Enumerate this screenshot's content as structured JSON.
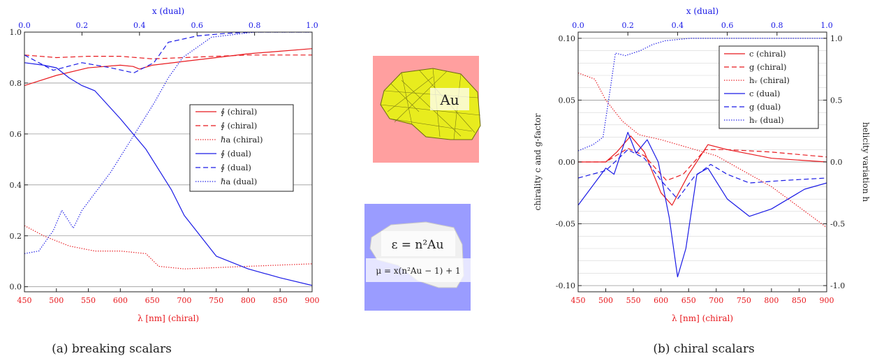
{
  "captions": {
    "left": "(a) breaking scalars",
    "right": "(b) chiral scalars"
  },
  "insets": {
    "au": {
      "label": "Au",
      "bg": "#ff9f9f",
      "body": "#e8ec1e"
    },
    "eps": {
      "label": "ε = n²Au",
      "bg": "#9a9cff",
      "body": "#f0f0f0"
    },
    "mu": {
      "label": "μ = x(n²Au − 1) + 1"
    }
  },
  "colors": {
    "chiral": "#e8191e",
    "dual": "#1a1ae6"
  },
  "chart_data": [
    {
      "type": "line",
      "xlabel": "λ [nm] (chiral)",
      "x2label": "x (dual)",
      "xlim": [
        450,
        900
      ],
      "ylim": [
        -0.02,
        1.0
      ],
      "x2lim": [
        0.0,
        1.0
      ],
      "xticks": [
        450,
        500,
        550,
        600,
        650,
        700,
        750,
        800,
        850,
        900
      ],
      "xtick_labels": [
        "450",
        "500",
        "550",
        "600",
        "650",
        "700",
        "750",
        "800",
        "850",
        "900"
      ],
      "x2ticks": [
        0.0,
        0.2,
        0.4,
        0.6,
        0.8,
        1.0
      ],
      "x2tick_labels": [
        "0.0",
        "0.2",
        "0.4",
        "0.6",
        "0.8",
        "1.0"
      ],
      "yticks": [
        0.0,
        0.2,
        0.4,
        0.6,
        0.8,
        1.0
      ],
      "ytick_labels": [
        "0.0",
        "0.2",
        "0.4",
        "0.6",
        "0.8",
        "1.0"
      ],
      "grid": true,
      "legend_position": "center-right",
      "series": [
        {
          "name": "∮ (chiral)",
          "color": "#e8191e",
          "style": "solid",
          "axis": "bottom",
          "x": [
            450,
            500,
            550,
            600,
            620,
            630,
            650,
            700,
            750,
            800,
            850,
            900
          ],
          "y": [
            0.79,
            0.83,
            0.86,
            0.87,
            0.865,
            0.855,
            0.87,
            0.885,
            0.9,
            0.915,
            0.925,
            0.935
          ]
        },
        {
          "name": "∮ (chiral)",
          "color": "#e8191e",
          "style": "dashed",
          "axis": "bottom",
          "x": [
            450,
            500,
            550,
            600,
            650,
            700,
            750,
            800,
            900
          ],
          "y": [
            0.91,
            0.9,
            0.905,
            0.905,
            0.895,
            0.9,
            0.905,
            0.91,
            0.91
          ]
        },
        {
          "name": "ℏa (chiral)",
          "color": "#e8191e",
          "style": "dotted",
          "axis": "bottom",
          "x": [
            450,
            480,
            520,
            560,
            600,
            640,
            660,
            700,
            800,
            900
          ],
          "y": [
            0.24,
            0.2,
            0.16,
            0.14,
            0.14,
            0.13,
            0.08,
            0.07,
            0.08,
            0.09
          ]
        },
        {
          "name": "∮ (dual)",
          "color": "#1a1ae6",
          "style": "solid",
          "axis": "bottom",
          "x": [
            450,
            480,
            500,
            520,
            540,
            560,
            600,
            640,
            680,
            700,
            750,
            800,
            850,
            900
          ],
          "y": [
            0.88,
            0.87,
            0.86,
            0.82,
            0.79,
            0.77,
            0.66,
            0.54,
            0.38,
            0.28,
            0.12,
            0.07,
            0.035,
            0.005
          ]
        },
        {
          "name": "∮ (dual)",
          "color": "#1a1ae6",
          "style": "dashed",
          "axis": "top",
          "x": [
            0.0,
            0.1,
            0.2,
            0.3,
            0.38,
            0.45,
            0.5,
            0.6,
            0.7,
            0.8,
            1.0
          ],
          "y": [
            0.91,
            0.85,
            0.88,
            0.86,
            0.84,
            0.88,
            0.96,
            0.985,
            0.995,
            1.0,
            1.0
          ]
        },
        {
          "name": "ℏa (dual)",
          "color": "#1a1ae6",
          "style": "dotted",
          "axis": "top",
          "x": [
            0.0,
            0.05,
            0.1,
            0.13,
            0.17,
            0.2,
            0.3,
            0.4,
            0.45,
            0.5,
            0.55,
            0.65,
            0.8,
            1.0
          ],
          "y": [
            0.13,
            0.14,
            0.22,
            0.3,
            0.23,
            0.3,
            0.45,
            0.63,
            0.72,
            0.82,
            0.9,
            0.98,
            1.0,
            1.0
          ]
        }
      ]
    },
    {
      "type": "line",
      "xlabel": "λ [nm] (chiral)",
      "x2label": "x (dual)",
      "ylabel": "chirality c and g-factor",
      "y2label": "helicity variation h",
      "xlim": [
        450,
        900
      ],
      "ylim": [
        -0.105,
        0.105
      ],
      "y2lim": [
        -1.05,
        1.05
      ],
      "x2lim": [
        0.0,
        1.0
      ],
      "xticks": [
        450,
        500,
        550,
        600,
        650,
        700,
        750,
        800,
        850,
        900
      ],
      "xtick_labels": [
        "450",
        "500",
        "550",
        "600",
        "650",
        "700",
        "750",
        "800",
        "850",
        "900"
      ],
      "x2ticks": [
        0.0,
        0.2,
        0.4,
        0.6,
        0.8,
        1.0
      ],
      "x2tick_labels": [
        "0.0",
        "0.2",
        "0.4",
        "0.6",
        "0.8",
        "1.0"
      ],
      "yticks": [
        0.1,
        0.05,
        0.0,
        -0.05,
        -0.1
      ],
      "ytick_labels": [
        "0.10",
        "0.05",
        "0.00",
        "-0.05",
        "-0.10"
      ],
      "y2ticks": [
        1.0,
        0.5,
        0.0,
        -0.5,
        -1.0
      ],
      "y2tick_labels": [
        "1.0",
        "0.5",
        "0.0",
        "-0.5",
        "-1.0"
      ],
      "grid": true,
      "legend_position": "top-right",
      "series": [
        {
          "name": "c (chiral)",
          "color": "#e8191e",
          "style": "solid",
          "axis": "left",
          "x": [
            450,
            500,
            520,
            545,
            570,
            600,
            620,
            650,
            685,
            720,
            800,
            900
          ],
          "y": [
            0.0,
            0.0,
            0.008,
            0.021,
            0.008,
            -0.025,
            -0.035,
            -0.01,
            0.014,
            0.01,
            0.003,
            0.0
          ]
        },
        {
          "name": "g (chiral)",
          "color": "#e8191e",
          "style": "dashed",
          "axis": "left",
          "x": [
            450,
            500,
            540,
            570,
            610,
            640,
            680,
            720,
            800,
            900
          ],
          "y": [
            0.0,
            0.0,
            0.011,
            0.005,
            -0.015,
            -0.01,
            0.01,
            0.01,
            0.008,
            0.004
          ]
        },
        {
          "name": "hᵥ (chiral)",
          "color": "#e8191e",
          "style": "dotted",
          "axis": "right",
          "x": [
            450,
            480,
            500,
            530,
            560,
            600,
            700,
            800,
            900
          ],
          "y": [
            0.72,
            0.67,
            0.5,
            0.33,
            0.22,
            0.18,
            0.05,
            -0.2,
            -0.53
          ]
        },
        {
          "name": "c (dual)",
          "color": "#1a1ae6",
          "style": "solid",
          "axis": "left",
          "x": [
            450,
            500,
            515,
            540,
            555,
            575,
            595,
            615,
            630,
            645,
            665,
            685,
            720,
            760,
            800,
            860,
            900
          ],
          "y": [
            -0.035,
            -0.005,
            -0.01,
            0.024,
            0.007,
            0.018,
            0.0,
            -0.045,
            -0.093,
            -0.07,
            -0.01,
            -0.005,
            -0.03,
            -0.044,
            -0.038,
            -0.022,
            -0.017
          ]
        },
        {
          "name": "g (dual)",
          "color": "#1a1ae6",
          "style": "dashed",
          "axis": "left",
          "x": [
            450,
            500,
            540,
            570,
            600,
            630,
            660,
            690,
            720,
            760,
            820,
            900
          ],
          "y": [
            -0.013,
            -0.007,
            0.01,
            0.003,
            -0.015,
            -0.03,
            -0.012,
            -0.002,
            -0.01,
            -0.017,
            -0.015,
            -0.013
          ]
        },
        {
          "name": "hᵥ (dual)",
          "color": "#1a1ae6",
          "style": "dotted",
          "axis": "top-right",
          "x": [
            0.0,
            0.06,
            0.1,
            0.13,
            0.15,
            0.19,
            0.22,
            0.25,
            0.3,
            0.35,
            0.45,
            0.6,
            1.0
          ],
          "y": [
            0.09,
            0.14,
            0.2,
            0.6,
            0.88,
            0.86,
            0.88,
            0.9,
            0.95,
            0.98,
            1.0,
            1.0,
            1.0
          ]
        }
      ]
    }
  ]
}
